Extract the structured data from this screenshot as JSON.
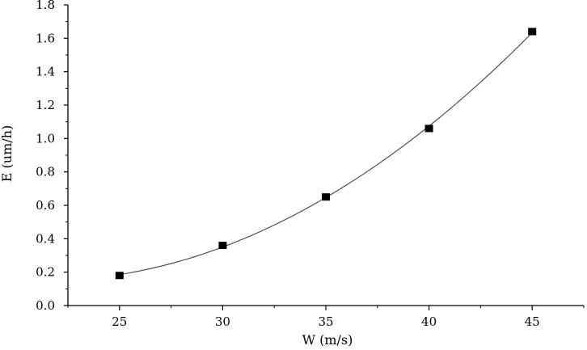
{
  "chart_data": {
    "type": "scatter",
    "xlabel": "W (m/s)",
    "ylabel": "E (um/h)",
    "xlim": [
      22.5,
      47.5
    ],
    "ylim": [
      0.0,
      1.8
    ],
    "xticks": [
      25,
      30,
      35,
      40,
      45
    ],
    "yticks": [
      0.0,
      0.2,
      0.4,
      0.6,
      0.8,
      1.0,
      1.2,
      1.4,
      1.6,
      1.8
    ],
    "xtick_labels": [
      "25",
      "30",
      "35",
      "40",
      "45"
    ],
    "ytick_labels": [
      "0.0",
      "0.2",
      "0.4",
      "0.6",
      "0.8",
      "1.0",
      "1.2",
      "1.4",
      "1.6",
      "1.8"
    ],
    "grid": false,
    "marker": "square",
    "fit_curve": true,
    "series": [
      {
        "x": [
          25,
          30,
          35,
          40,
          45
        ],
        "values": [
          0.18,
          0.36,
          0.65,
          1.06,
          1.64
        ]
      }
    ],
    "colors": {
      "marker": "#000000",
      "line": "#444444",
      "axis": "#000000"
    }
  }
}
